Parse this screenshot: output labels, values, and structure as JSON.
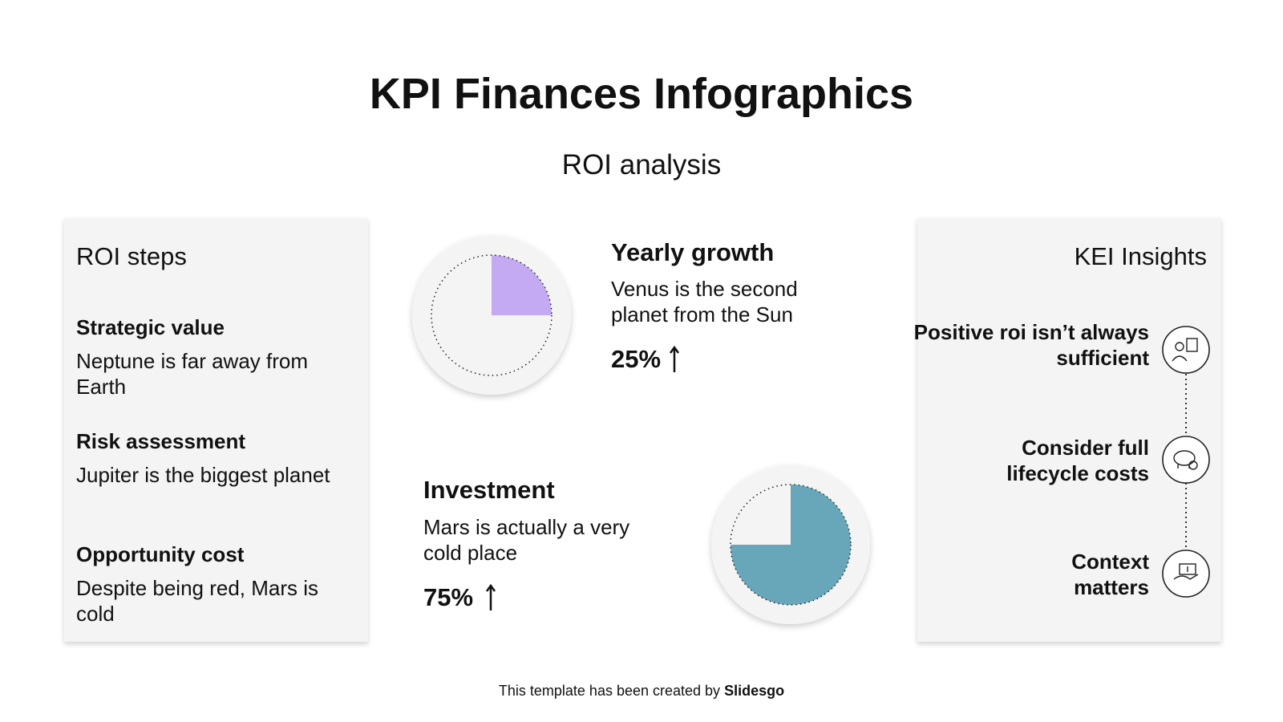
{
  "header": {
    "title": "KPI Finances Infographics",
    "subtitle": "ROI analysis"
  },
  "roi_steps": {
    "title": "ROI steps",
    "items": [
      {
        "heading": "Strategic value",
        "text": "Neptune is far away from Earth"
      },
      {
        "heading": "Risk assessment",
        "text": "Jupiter is the biggest planet"
      },
      {
        "heading": "Opportunity cost",
        "text": "Despite being red, Mars is cold"
      }
    ]
  },
  "kpis": [
    {
      "title": "Yearly growth",
      "text": "Venus is the second planet from the Sun",
      "value": 25,
      "value_label": "25%",
      "color": "#c4aaf0"
    },
    {
      "title": "Investment",
      "text": "Mars is actually a very cold place",
      "value": 75,
      "value_label": "75%",
      "color": "#68a6b9"
    }
  ],
  "kei_insights": {
    "title": "KEI Insights",
    "items": [
      "Positive roi isn’t always sufficient",
      "Consider full lifecycle costs",
      "Context matters"
    ]
  },
  "footer": {
    "text": "This template has been created by",
    "brand": "Slidesgo"
  }
}
